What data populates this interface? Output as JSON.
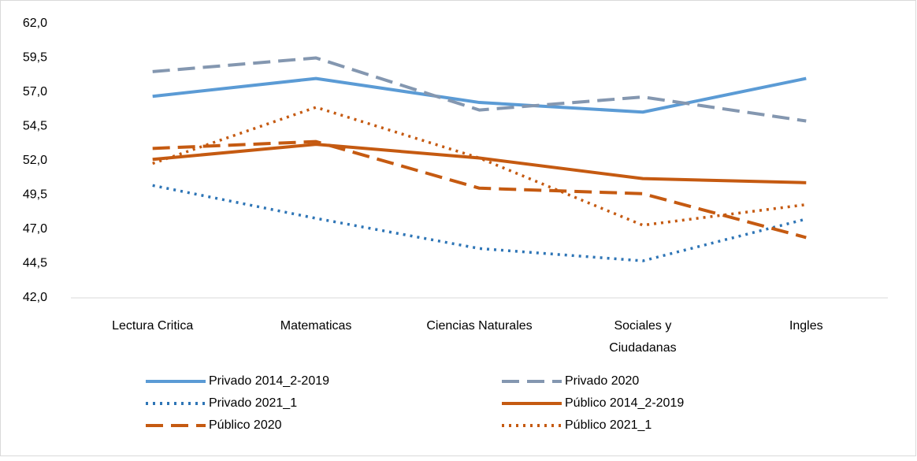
{
  "chart_data": {
    "type": "line",
    "categories": [
      "Lectura Critica",
      "Matematicas",
      "Ciencias Naturales",
      "Sociales y Ciudadanas",
      "Ingles"
    ],
    "series": [
      {
        "name": "Privado 2014_2-2019",
        "color": "#5b9bd5",
        "dash": "solid",
        "values": [
          56.7,
          58.0,
          56.25,
          55.55,
          58.0
        ]
      },
      {
        "name": "Privado 2020",
        "color": "#8497b0",
        "dash": "dashed",
        "values": [
          58.5,
          59.5,
          55.7,
          56.65,
          54.9
        ]
      },
      {
        "name": "Privado 2021_1",
        "color": "#2e75b6",
        "dash": "dotted",
        "values": [
          50.2,
          47.8,
          45.6,
          44.7,
          47.75
        ]
      },
      {
        "name": "Público 2014_2-2019",
        "color": "#c55a11",
        "dash": "solid",
        "values": [
          52.1,
          53.2,
          52.2,
          50.7,
          50.4
        ]
      },
      {
        "name": "Público 2020",
        "color": "#c55a11",
        "dash": "dashed",
        "values": [
          52.9,
          53.4,
          50.0,
          49.6,
          46.4
        ]
      },
      {
        "name": "Público 2021_1",
        "color": "#c55a11",
        "dash": "dotted",
        "values": [
          51.8,
          55.9,
          52.2,
          47.3,
          48.8
        ]
      }
    ],
    "ylim": [
      42,
      62
    ],
    "yticks": [
      {
        "value": 42,
        "label": "42,0"
      },
      {
        "value": 44.5,
        "label": "44,5"
      },
      {
        "value": 47,
        "label": "47,0"
      },
      {
        "value": 49.5,
        "label": "49,5"
      },
      {
        "value": 52,
        "label": "52,0"
      },
      {
        "value": 54.5,
        "label": "54,5"
      },
      {
        "value": 57,
        "label": "57,0"
      },
      {
        "value": 59.5,
        "label": "59,5"
      },
      {
        "value": 62,
        "label": "62,0"
      }
    ],
    "grid": false,
    "legend": "bottom"
  }
}
